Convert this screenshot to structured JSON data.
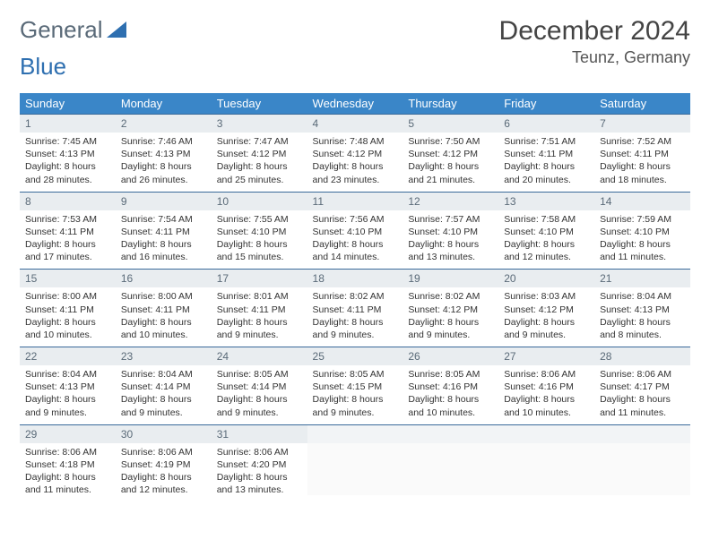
{
  "logo": {
    "word1": "General",
    "word2": "Blue"
  },
  "title": "December 2024",
  "location": "Teunz, Germany",
  "colors": {
    "header_bg": "#3a86c8",
    "header_text": "#ffffff",
    "daynum_bg": "#e9edf0",
    "daynum_text": "#5a6a78",
    "cell_rule": "#3a6a9a",
    "body_text": "#333333",
    "page_bg": "#ffffff",
    "logo_text": "#5a6a78",
    "logo_accent": "#2e6fb0"
  },
  "day_headers": [
    "Sunday",
    "Monday",
    "Tuesday",
    "Wednesday",
    "Thursday",
    "Friday",
    "Saturday"
  ],
  "weeks": [
    [
      {
        "n": "1",
        "sr": "Sunrise: 7:45 AM",
        "ss": "Sunset: 4:13 PM",
        "d1": "Daylight: 8 hours",
        "d2": "and 28 minutes."
      },
      {
        "n": "2",
        "sr": "Sunrise: 7:46 AM",
        "ss": "Sunset: 4:13 PM",
        "d1": "Daylight: 8 hours",
        "d2": "and 26 minutes."
      },
      {
        "n": "3",
        "sr": "Sunrise: 7:47 AM",
        "ss": "Sunset: 4:12 PM",
        "d1": "Daylight: 8 hours",
        "d2": "and 25 minutes."
      },
      {
        "n": "4",
        "sr": "Sunrise: 7:48 AM",
        "ss": "Sunset: 4:12 PM",
        "d1": "Daylight: 8 hours",
        "d2": "and 23 minutes."
      },
      {
        "n": "5",
        "sr": "Sunrise: 7:50 AM",
        "ss": "Sunset: 4:12 PM",
        "d1": "Daylight: 8 hours",
        "d2": "and 21 minutes."
      },
      {
        "n": "6",
        "sr": "Sunrise: 7:51 AM",
        "ss": "Sunset: 4:11 PM",
        "d1": "Daylight: 8 hours",
        "d2": "and 20 minutes."
      },
      {
        "n": "7",
        "sr": "Sunrise: 7:52 AM",
        "ss": "Sunset: 4:11 PM",
        "d1": "Daylight: 8 hours",
        "d2": "and 18 minutes."
      }
    ],
    [
      {
        "n": "8",
        "sr": "Sunrise: 7:53 AM",
        "ss": "Sunset: 4:11 PM",
        "d1": "Daylight: 8 hours",
        "d2": "and 17 minutes."
      },
      {
        "n": "9",
        "sr": "Sunrise: 7:54 AM",
        "ss": "Sunset: 4:11 PM",
        "d1": "Daylight: 8 hours",
        "d2": "and 16 minutes."
      },
      {
        "n": "10",
        "sr": "Sunrise: 7:55 AM",
        "ss": "Sunset: 4:10 PM",
        "d1": "Daylight: 8 hours",
        "d2": "and 15 minutes."
      },
      {
        "n": "11",
        "sr": "Sunrise: 7:56 AM",
        "ss": "Sunset: 4:10 PM",
        "d1": "Daylight: 8 hours",
        "d2": "and 14 minutes."
      },
      {
        "n": "12",
        "sr": "Sunrise: 7:57 AM",
        "ss": "Sunset: 4:10 PM",
        "d1": "Daylight: 8 hours",
        "d2": "and 13 minutes."
      },
      {
        "n": "13",
        "sr": "Sunrise: 7:58 AM",
        "ss": "Sunset: 4:10 PM",
        "d1": "Daylight: 8 hours",
        "d2": "and 12 minutes."
      },
      {
        "n": "14",
        "sr": "Sunrise: 7:59 AM",
        "ss": "Sunset: 4:10 PM",
        "d1": "Daylight: 8 hours",
        "d2": "and 11 minutes."
      }
    ],
    [
      {
        "n": "15",
        "sr": "Sunrise: 8:00 AM",
        "ss": "Sunset: 4:11 PM",
        "d1": "Daylight: 8 hours",
        "d2": "and 10 minutes."
      },
      {
        "n": "16",
        "sr": "Sunrise: 8:00 AM",
        "ss": "Sunset: 4:11 PM",
        "d1": "Daylight: 8 hours",
        "d2": "and 10 minutes."
      },
      {
        "n": "17",
        "sr": "Sunrise: 8:01 AM",
        "ss": "Sunset: 4:11 PM",
        "d1": "Daylight: 8 hours",
        "d2": "and 9 minutes."
      },
      {
        "n": "18",
        "sr": "Sunrise: 8:02 AM",
        "ss": "Sunset: 4:11 PM",
        "d1": "Daylight: 8 hours",
        "d2": "and 9 minutes."
      },
      {
        "n": "19",
        "sr": "Sunrise: 8:02 AM",
        "ss": "Sunset: 4:12 PM",
        "d1": "Daylight: 8 hours",
        "d2": "and 9 minutes."
      },
      {
        "n": "20",
        "sr": "Sunrise: 8:03 AM",
        "ss": "Sunset: 4:12 PM",
        "d1": "Daylight: 8 hours",
        "d2": "and 9 minutes."
      },
      {
        "n": "21",
        "sr": "Sunrise: 8:04 AM",
        "ss": "Sunset: 4:13 PM",
        "d1": "Daylight: 8 hours",
        "d2": "and 8 minutes."
      }
    ],
    [
      {
        "n": "22",
        "sr": "Sunrise: 8:04 AM",
        "ss": "Sunset: 4:13 PM",
        "d1": "Daylight: 8 hours",
        "d2": "and 9 minutes."
      },
      {
        "n": "23",
        "sr": "Sunrise: 8:04 AM",
        "ss": "Sunset: 4:14 PM",
        "d1": "Daylight: 8 hours",
        "d2": "and 9 minutes."
      },
      {
        "n": "24",
        "sr": "Sunrise: 8:05 AM",
        "ss": "Sunset: 4:14 PM",
        "d1": "Daylight: 8 hours",
        "d2": "and 9 minutes."
      },
      {
        "n": "25",
        "sr": "Sunrise: 8:05 AM",
        "ss": "Sunset: 4:15 PM",
        "d1": "Daylight: 8 hours",
        "d2": "and 9 minutes."
      },
      {
        "n": "26",
        "sr": "Sunrise: 8:05 AM",
        "ss": "Sunset: 4:16 PM",
        "d1": "Daylight: 8 hours",
        "d2": "and 10 minutes."
      },
      {
        "n": "27",
        "sr": "Sunrise: 8:06 AM",
        "ss": "Sunset: 4:16 PM",
        "d1": "Daylight: 8 hours",
        "d2": "and 10 minutes."
      },
      {
        "n": "28",
        "sr": "Sunrise: 8:06 AM",
        "ss": "Sunset: 4:17 PM",
        "d1": "Daylight: 8 hours",
        "d2": "and 11 minutes."
      }
    ],
    [
      {
        "n": "29",
        "sr": "Sunrise: 8:06 AM",
        "ss": "Sunset: 4:18 PM",
        "d1": "Daylight: 8 hours",
        "d2": "and 11 minutes."
      },
      {
        "n": "30",
        "sr": "Sunrise: 8:06 AM",
        "ss": "Sunset: 4:19 PM",
        "d1": "Daylight: 8 hours",
        "d2": "and 12 minutes."
      },
      {
        "n": "31",
        "sr": "Sunrise: 8:06 AM",
        "ss": "Sunset: 4:20 PM",
        "d1": "Daylight: 8 hours",
        "d2": "and 13 minutes."
      },
      {
        "empty": true
      },
      {
        "empty": true
      },
      {
        "empty": true
      },
      {
        "empty": true
      }
    ]
  ]
}
